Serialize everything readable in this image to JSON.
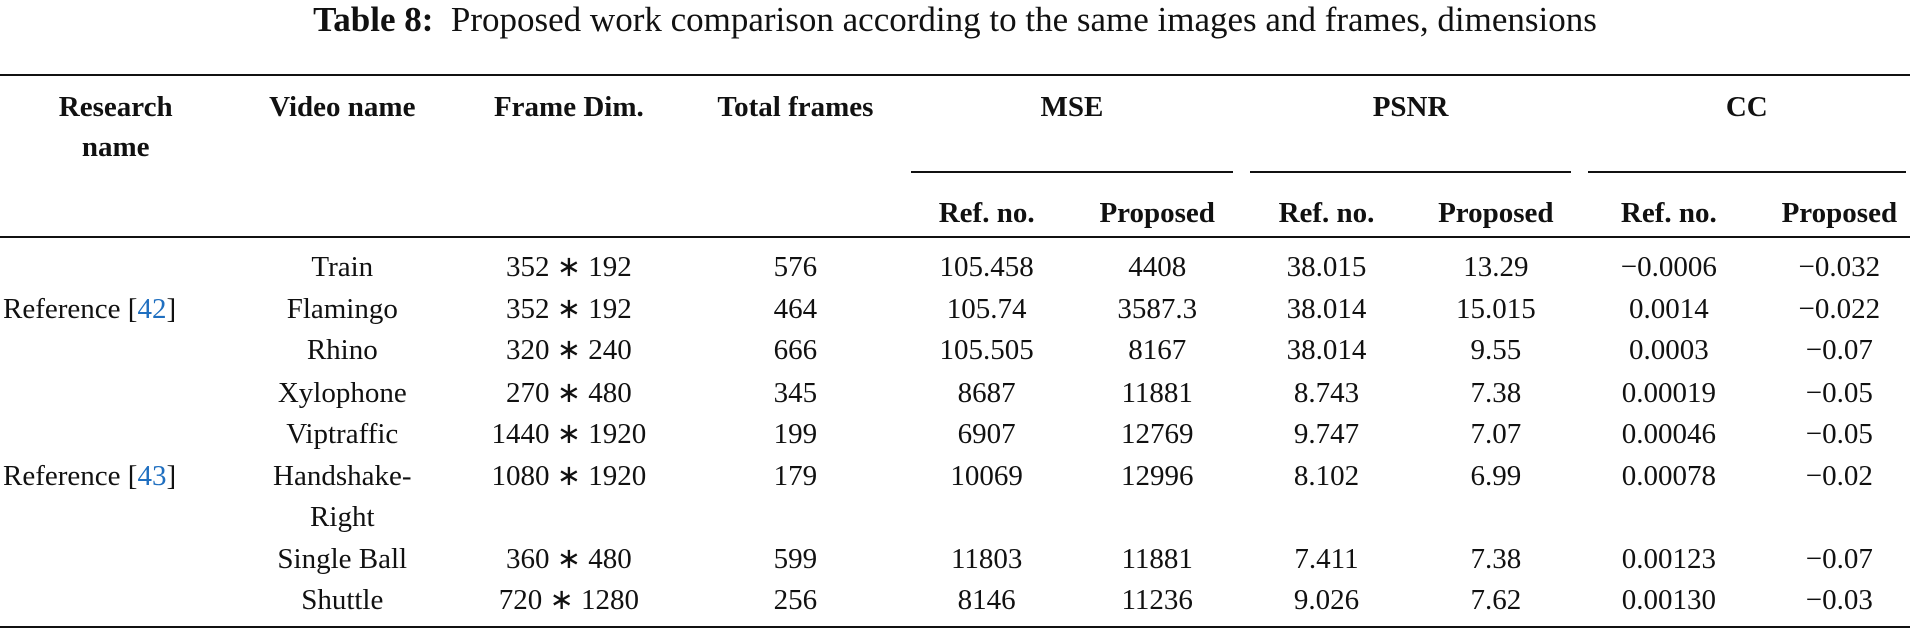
{
  "title": {
    "label": "Table 8:",
    "text": "Proposed work comparison according to the same images and frames, dimensions"
  },
  "table": {
    "columns": [
      "Research name",
      "Video name",
      "Frame Dim.",
      "Total frames"
    ],
    "groups": [
      "MSE",
      "PSNR",
      "CC"
    ],
    "subheaders": [
      "Ref. no.",
      "Proposed",
      "Ref. no.",
      "Proposed",
      "Ref. no.",
      "Proposed"
    ],
    "research": [
      {
        "prefix": "Reference [",
        "ref": "42",
        "suffix": "]"
      },
      {
        "prefix": "Reference [",
        "ref": "43",
        "suffix": "]"
      }
    ],
    "rows": [
      [
        "Train",
        "352 ∗ 192",
        "576",
        "105.458",
        "4408",
        "38.015",
        "13.29",
        "−0.0006",
        "−0.032"
      ],
      [
        "Flamingo",
        "352 ∗ 192",
        "464",
        "105.74",
        "3587.3",
        "38.014",
        "15.015",
        "0.0014",
        "−0.022"
      ],
      [
        "Rhino",
        "320 ∗ 240",
        "666",
        "105.505",
        "8167",
        "38.014",
        "9.55",
        "0.0003",
        "−0.07"
      ],
      [
        "Xylophone",
        "270 ∗ 480",
        "345",
        "8687",
        "11881",
        "8.743",
        "7.38",
        "0.00019",
        "−0.05"
      ],
      [
        "Viptraffic",
        "1440 ∗ 1920",
        "199",
        "6907",
        "12769",
        "9.747",
        "7.07",
        "0.00046",
        "−0.05"
      ],
      [
        "Handshake-Right",
        "1080 ∗ 1920",
        "179",
        "10069",
        "12996",
        "8.102",
        "6.99",
        "0.00078",
        "−0.02"
      ],
      [
        "Single Ball",
        "360 ∗ 480",
        "599",
        "11803",
        "11881",
        "7.411",
        "7.38",
        "0.00123",
        "−0.07"
      ],
      [
        "Shuttle",
        "720 ∗ 1280",
        "256",
        "8146",
        "11236",
        "9.026",
        "7.62",
        "0.00130",
        "−0.03"
      ]
    ]
  }
}
